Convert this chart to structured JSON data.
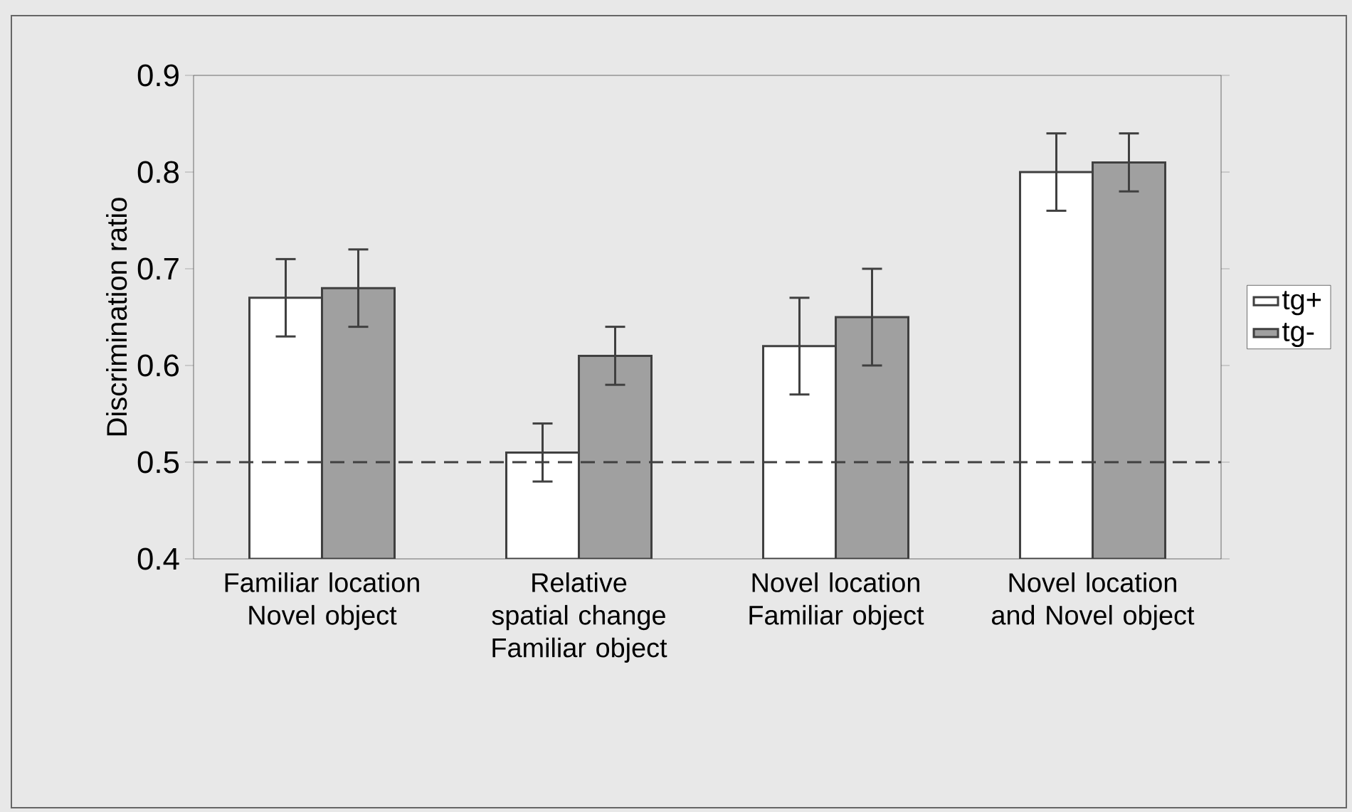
{
  "chart_data": {
    "type": "bar",
    "ylabel": "Discrimination ratio",
    "categories": [
      "Familiar location Novel object",
      "Relative spatial change Familiar object",
      "Novel location Familiar object",
      "Novel location and Novel object"
    ],
    "series": [
      {
        "name": "tg+",
        "color": "#ffffff",
        "values": [
          0.67,
          0.51,
          0.62,
          0.8
        ],
        "errors": [
          0.04,
          0.03,
          0.05,
          0.04
        ]
      },
      {
        "name": "tg-",
        "color": "#a0a0a0",
        "values": [
          0.68,
          0.61,
          0.65,
          0.81
        ],
        "errors": [
          0.04,
          0.03,
          0.05,
          0.03
        ]
      }
    ],
    "ylim": [
      0.4,
      0.9
    ],
    "yticks": [
      0.4,
      0.5,
      0.6,
      0.7,
      0.8,
      0.9
    ],
    "ref_lines": [
      {
        "axis": "y",
        "value": 0.5,
        "line_style": "dashed"
      }
    ],
    "legend": "right"
  }
}
